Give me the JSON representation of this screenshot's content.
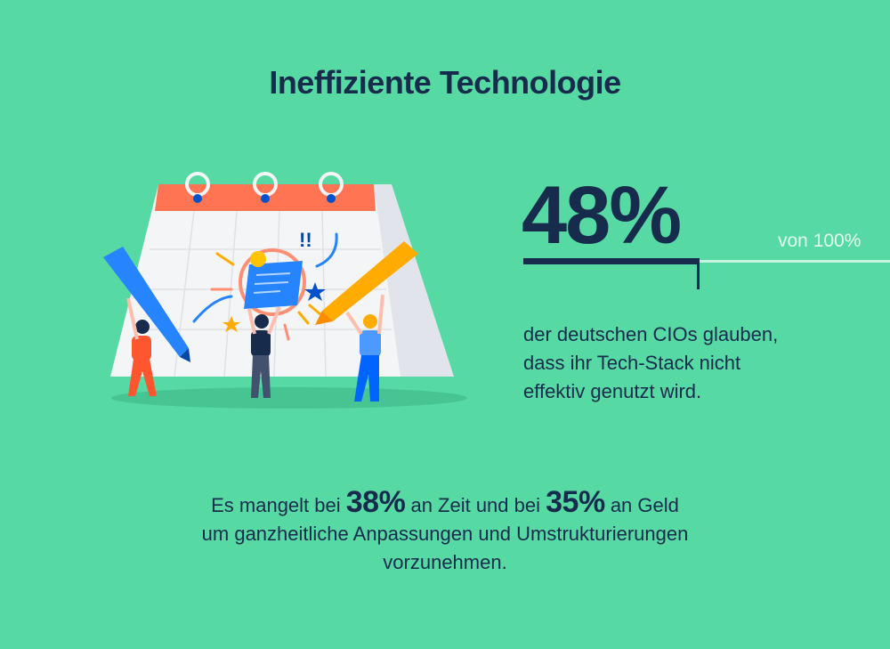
{
  "title": "Ineffiziente Technologie",
  "stat": {
    "value": "48%",
    "of_total": "von 100%",
    "fraction": 0.48,
    "description_lines": [
      "der deutschen CIOs glauben,",
      "dass ihr Tech-Stack nicht",
      "effektiv genutzt wird."
    ]
  },
  "bottom": {
    "part1": "Es mangelt bei",
    "value1": "38%",
    "part2": "an Zeit  und  bei",
    "value2": "35%",
    "part3": "an Geld",
    "line2": "um ganzheitliche Anpassungen und Umstrukturierungen",
    "line3": "vorzunehmen."
  },
  "colors": {
    "background": "#57d9a3",
    "text": "#172b4d",
    "calendar_header": "#ff7452",
    "pen_blue": "#2684ff",
    "pen_yellow": "#ffab00"
  },
  "icons": [
    "calendar-icon",
    "pencil-icon",
    "document-icon",
    "star-icon",
    "arrow-icon",
    "person-icon"
  ]
}
